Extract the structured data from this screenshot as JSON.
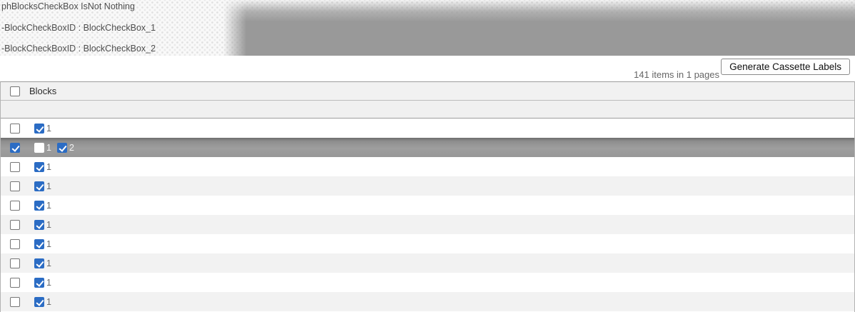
{
  "banner": {
    "debug_lines": [
      "phBlocksCheckBox IsNot Nothing",
      "-BlockCheckBoxID : BlockCheckBox_1",
      "-BlockCheckBoxID : BlockCheckBox_2"
    ]
  },
  "toolbar": {
    "items_summary": "141 items in 1 pages",
    "generate_button_label": "Generate Cassette Labels"
  },
  "table": {
    "header": {
      "column_label": "Blocks",
      "select_all_checked": false
    },
    "rows": [
      {
        "selected": false,
        "row_checkbox": false,
        "blocks": [
          {
            "label": "1",
            "checked": true
          }
        ]
      },
      {
        "selected": true,
        "row_checkbox": true,
        "blocks": [
          {
            "label": "1",
            "checked": false
          },
          {
            "label": "2",
            "checked": true
          }
        ]
      },
      {
        "selected": false,
        "row_checkbox": false,
        "blocks": [
          {
            "label": "1",
            "checked": true
          }
        ]
      },
      {
        "selected": false,
        "row_checkbox": false,
        "blocks": [
          {
            "label": "1",
            "checked": true
          }
        ]
      },
      {
        "selected": false,
        "row_checkbox": false,
        "blocks": [
          {
            "label": "1",
            "checked": true
          }
        ]
      },
      {
        "selected": false,
        "row_checkbox": false,
        "blocks": [
          {
            "label": "1",
            "checked": true
          }
        ]
      },
      {
        "selected": false,
        "row_checkbox": false,
        "blocks": [
          {
            "label": "1",
            "checked": true
          }
        ]
      },
      {
        "selected": false,
        "row_checkbox": false,
        "blocks": [
          {
            "label": "1",
            "checked": true
          }
        ]
      },
      {
        "selected": false,
        "row_checkbox": false,
        "blocks": [
          {
            "label": "1",
            "checked": true
          }
        ]
      },
      {
        "selected": false,
        "row_checkbox": false,
        "blocks": [
          {
            "label": "1",
            "checked": true
          }
        ]
      }
    ]
  },
  "colors": {
    "checkbox_blue": "#2b6cc4",
    "selected_row_gray": "#949494",
    "alt_row_gray": "#f2f2f2",
    "smudge_gray": "#999999"
  }
}
